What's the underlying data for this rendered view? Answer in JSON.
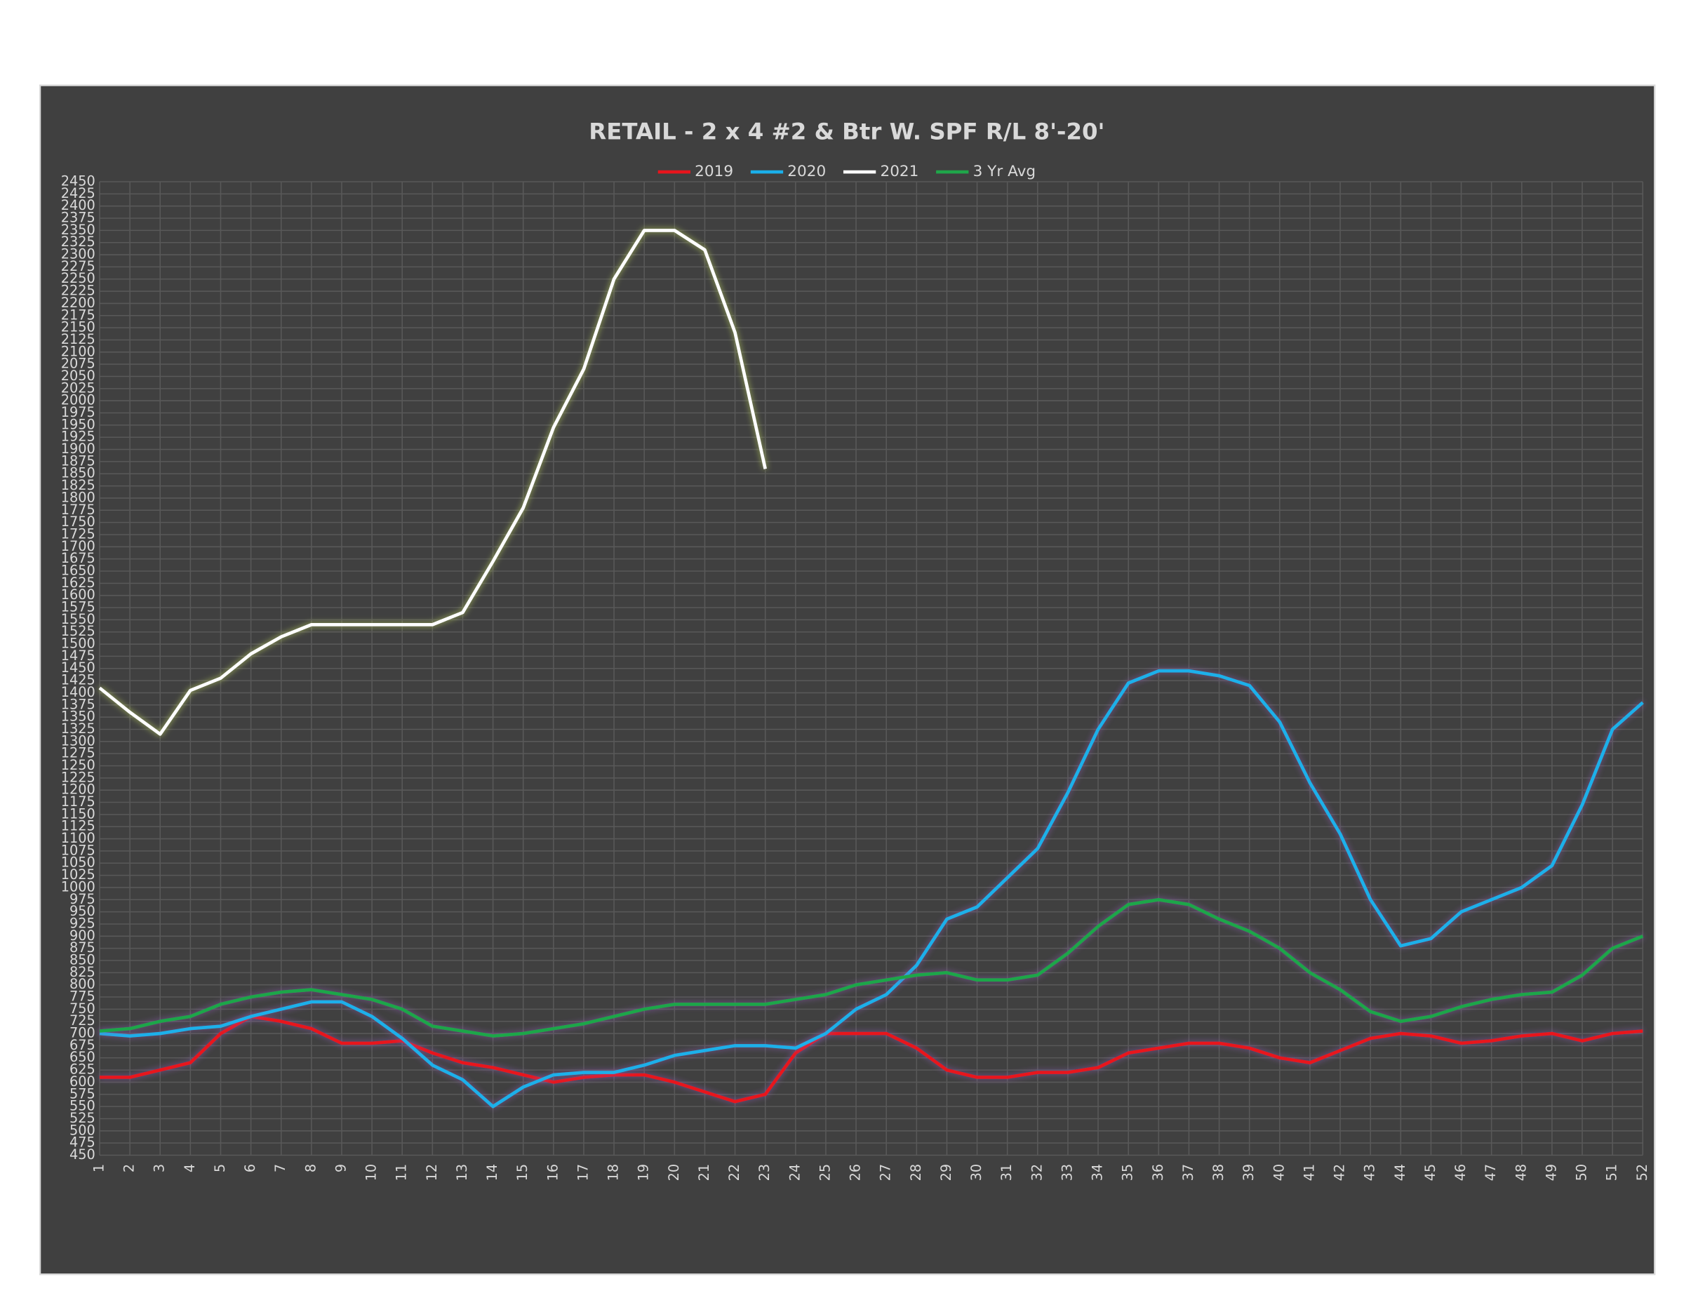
{
  "chart_data": {
    "type": "line",
    "title": "RETAIL - 2 x 4 #2 & Btr W. SPF R/L 8'-20'",
    "categories": [
      1,
      2,
      3,
      4,
      5,
      6,
      7,
      8,
      9,
      10,
      11,
      12,
      13,
      14,
      15,
      16,
      17,
      18,
      19,
      20,
      21,
      22,
      23,
      24,
      25,
      26,
      27,
      28,
      29,
      30,
      31,
      32,
      33,
      34,
      35,
      36,
      37,
      38,
      39,
      40,
      41,
      42,
      43,
      44,
      45,
      46,
      47,
      48,
      49,
      50,
      51,
      52
    ],
    "series": [
      {
        "name": "2019",
        "color": "#e8141c",
        "values": [
          610,
          610,
          625,
          640,
          700,
          735,
          725,
          710,
          680,
          680,
          685,
          660,
          640,
          630,
          615,
          600,
          610,
          615,
          615,
          600,
          580,
          560,
          575,
          660,
          700,
          700,
          700,
          670,
          625,
          610,
          610,
          620,
          620,
          630,
          660,
          670,
          680,
          680,
          670,
          650,
          640,
          665,
          690,
          700,
          695,
          680,
          685,
          695,
          700,
          685,
          700,
          705
        ]
      },
      {
        "name": "2020",
        "color": "#1ab0ea",
        "values": [
          700,
          695,
          700,
          710,
          715,
          735,
          750,
          765,
          765,
          735,
          690,
          635,
          605,
          550,
          590,
          615,
          620,
          620,
          635,
          655,
          665,
          675,
          675,
          670,
          700,
          750,
          780,
          840,
          935,
          960,
          1020,
          1080,
          1195,
          1325,
          1420,
          1445,
          1445,
          1435,
          1415,
          1340,
          1215,
          1110,
          975,
          880,
          895,
          950,
          975,
          1000,
          1045,
          1170,
          1325,
          1380
        ]
      },
      {
        "name": "2021",
        "color": "#ffffff",
        "values": [
          1410,
          1360,
          1315,
          1405,
          1430,
          1480,
          1515,
          1540,
          1540,
          1540,
          1540,
          1540,
          1565,
          1670,
          1780,
          1945,
          2065,
          2250,
          2350,
          2350,
          2310,
          2140,
          1860,
          null,
          null,
          null,
          null,
          null,
          null,
          null,
          null,
          null,
          null,
          null,
          null,
          null,
          null,
          null,
          null,
          null,
          null,
          null,
          null,
          null,
          null,
          null,
          null,
          null,
          null,
          null,
          null,
          null
        ]
      },
      {
        "name": "3 Yr Avg",
        "color": "#1fa64a",
        "values": [
          705,
          710,
          725,
          735,
          760,
          775,
          785,
          790,
          780,
          770,
          750,
          715,
          705,
          695,
          700,
          710,
          720,
          735,
          750,
          760,
          760,
          760,
          760,
          770,
          780,
          800,
          810,
          820,
          825,
          810,
          810,
          820,
          865,
          920,
          965,
          975,
          965,
          935,
          910,
          875,
          825,
          790,
          745,
          725,
          735,
          755,
          770,
          780,
          785,
          820,
          875,
          900
        ]
      }
    ],
    "ylim": [
      450,
      2450
    ],
    "yticks": [
      450,
      475,
      500,
      525,
      550,
      575,
      600,
      625,
      650,
      675,
      700,
      725,
      750,
      775,
      800,
      825,
      850,
      875,
      900,
      925,
      950,
      975,
      1000,
      1025,
      1050,
      1075,
      1100,
      1125,
      1150,
      1175,
      1200,
      1225,
      1250,
      1275,
      1300,
      1325,
      1350,
      1375,
      1400,
      1425,
      1450,
      1475,
      1500,
      1525,
      1550,
      1575,
      1600,
      1625,
      1650,
      1675,
      1700,
      1725,
      1750,
      1775,
      1800,
      1825,
      1850,
      1875,
      1900,
      1925,
      1950,
      1975,
      2000,
      2025,
      2050,
      2075,
      2100,
      2125,
      2150,
      2175,
      2200,
      2225,
      2250,
      2275,
      2300,
      2325,
      2350,
      2375,
      2400,
      2425,
      2450
    ],
    "grid": true,
    "legend": "top"
  }
}
